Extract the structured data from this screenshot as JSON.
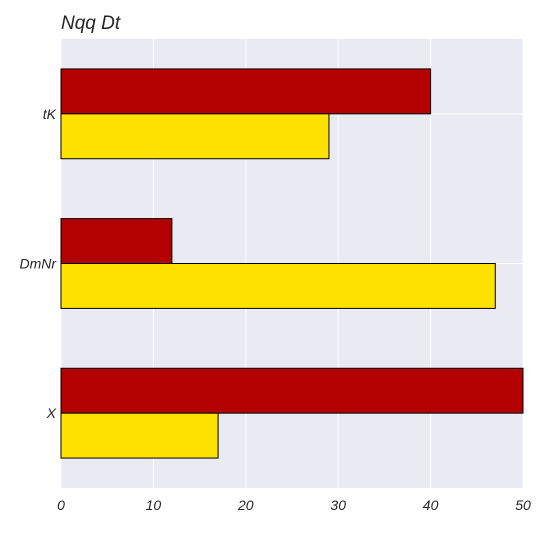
{
  "chart_data": {
    "type": "bar",
    "orientation": "horizontal",
    "title": "Nqq Dt",
    "xlabel": "",
    "ylabel": "",
    "categories": [
      "tK",
      "DmNr",
      "X"
    ],
    "series": [
      {
        "values": [
          40,
          12,
          50
        ],
        "color": "#b30000"
      },
      {
        "values": [
          29,
          47,
          17
        ],
        "color": "#ffe100"
      }
    ],
    "xlim": [
      0,
      50
    ],
    "xticks": [
      0,
      10,
      20,
      30,
      40,
      50
    ],
    "grid": true,
    "legend": "none",
    "plot_background": "#eaeaf2"
  }
}
